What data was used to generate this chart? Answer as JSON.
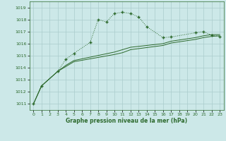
{
  "main_x": [
    0,
    1,
    3,
    4,
    5,
    7,
    8,
    9,
    10,
    11,
    12,
    13,
    14,
    16,
    17,
    20,
    21,
    22,
    23
  ],
  "main_y": [
    1011.0,
    1012.5,
    1013.7,
    1014.7,
    1015.2,
    1016.1,
    1018.0,
    1017.8,
    1018.5,
    1018.6,
    1018.5,
    1018.2,
    1017.4,
    1016.5,
    1016.55,
    1016.9,
    1017.0,
    1016.7,
    1016.6
  ],
  "smooth1_x": [
    0,
    1,
    3,
    4,
    5,
    10,
    11,
    12,
    16,
    17,
    20,
    21,
    22,
    23
  ],
  "smooth1_y": [
    1011.0,
    1012.5,
    1013.7,
    1014.1,
    1014.5,
    1015.1,
    1015.25,
    1015.5,
    1015.85,
    1016.05,
    1016.35,
    1016.5,
    1016.6,
    1016.65
  ],
  "smooth2_x": [
    0,
    1,
    3,
    4,
    5,
    10,
    11,
    12,
    14,
    16,
    17,
    20,
    21,
    22,
    23
  ],
  "smooth2_y": [
    1011.0,
    1012.5,
    1013.7,
    1014.2,
    1014.6,
    1015.3,
    1015.5,
    1015.7,
    1015.85,
    1016.0,
    1016.2,
    1016.5,
    1016.65,
    1016.75,
    1016.75
  ],
  "bg_color": "#cce8e8",
  "grid_color": "#aacccc",
  "line_color": "#2d6a2d",
  "xlabel": "Graphe pression niveau de la mer (hPa)",
  "ylim": [
    1010.5,
    1019.5
  ],
  "xlim": [
    -0.5,
    23.5
  ],
  "yticks": [
    1011,
    1012,
    1013,
    1014,
    1015,
    1016,
    1017,
    1018,
    1019
  ],
  "xticks": [
    0,
    1,
    2,
    3,
    4,
    5,
    6,
    7,
    8,
    9,
    10,
    11,
    12,
    13,
    14,
    15,
    16,
    17,
    18,
    19,
    20,
    21,
    22,
    23
  ]
}
